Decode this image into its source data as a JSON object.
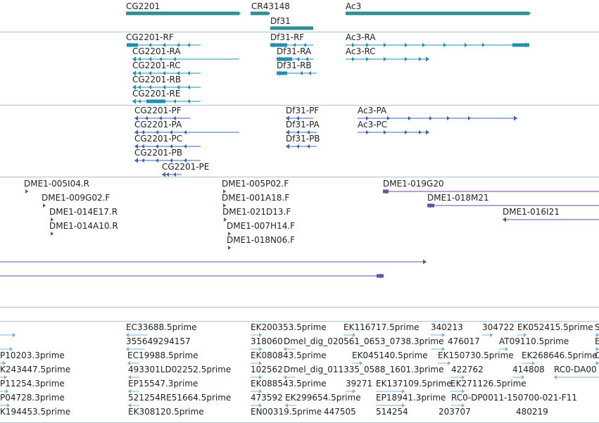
{
  "colors": {
    "gene": "#2f8f8f",
    "transcript": "#1f8fb3",
    "protein": "#3e63b5",
    "clone": "#6b4ea0",
    "est": "#7fb0da",
    "separator": "#a8c4d0"
  },
  "genes": [
    {
      "name": "CG2201"
    },
    {
      "name": "CR43148"
    },
    {
      "name": "Df31"
    },
    {
      "name": "Ac3"
    }
  ],
  "transcripts": [
    {
      "name": "CG2201-RF"
    },
    {
      "name": "CG2201-RA"
    },
    {
      "name": "CG2201-RC"
    },
    {
      "name": "CG2201-RB"
    },
    {
      "name": "CG2201-RE"
    },
    {
      "name": "Df31-RF"
    },
    {
      "name": "Df31-RA"
    },
    {
      "name": "Df31-RB"
    },
    {
      "name": "Ac3-RA"
    },
    {
      "name": "Ac3-RC"
    }
  ],
  "proteins": [
    {
      "name": "CG2201-PF"
    },
    {
      "name": "CG2201-PA"
    },
    {
      "name": "CG2201-PC"
    },
    {
      "name": "CG2201-PB"
    },
    {
      "name": "CG2201-PE"
    },
    {
      "name": "Df31-PF"
    },
    {
      "name": "Df31-PA"
    },
    {
      "name": "Df31-PB"
    },
    {
      "name": "Ac3-PA"
    },
    {
      "name": "Ac3-PC"
    }
  ],
  "clones": [
    {
      "name": "DME1-005I04.R"
    },
    {
      "name": "DME1-009G02.F"
    },
    {
      "name": "DME1-014E17.R"
    },
    {
      "name": "DME1-014A10.R"
    },
    {
      "name": "DME1-005P02.F"
    },
    {
      "name": "DME1-001A18.F"
    },
    {
      "name": "DME1-021D13.F"
    },
    {
      "name": "DME1-007H14.F"
    },
    {
      "name": "DME1-018N06.F"
    },
    {
      "name": "DME1-019G20"
    },
    {
      "name": "DME1-018M21"
    },
    {
      "name": "DME1-016I21"
    }
  ],
  "ests": [
    {
      "name": "EC33688.5prime"
    },
    {
      "name": "EK200353.5prime"
    },
    {
      "name": "EK116717.5prime"
    },
    {
      "name": "340213"
    },
    {
      "name": "304722"
    },
    {
      "name": "EK052415.5prime"
    },
    {
      "name": "S"
    },
    {
      "name": "355649294157"
    },
    {
      "name": "318060"
    },
    {
      "name": "Dmel_dig_020561_0653_0738.3prime"
    },
    {
      "name": "476017"
    },
    {
      "name": "AT09110.5prime"
    },
    {
      "name": "E"
    },
    {
      "name": "P10203.3prime"
    },
    {
      "name": "EC19988.5prime"
    },
    {
      "name": "EK080843.5prime"
    },
    {
      "name": "EK045140.5prime"
    },
    {
      "name": "EK150730.5prime"
    },
    {
      "name": "EK268646.5prime"
    },
    {
      "name": "C"
    },
    {
      "name": "K243447.5prime"
    },
    {
      "name": "493301LD02252.5prime"
    },
    {
      "name": "102562"
    },
    {
      "name": "Dmel_dig_011335_0588_1601.3prime"
    },
    {
      "name": "422762"
    },
    {
      "name": "414808"
    },
    {
      "name": "RC0-DA00"
    },
    {
      "name": "P11254.3prime"
    },
    {
      "name": "EP15547.3prime"
    },
    {
      "name": "EK088543.5prime"
    },
    {
      "name": "39271"
    },
    {
      "name": "EK137109.5prime"
    },
    {
      "name": "EK271126.5prime"
    },
    {
      "name": "P04728.3prime"
    },
    {
      "name": "521254RE51664.5prime"
    },
    {
      "name": "473592"
    },
    {
      "name": "EK299654.5prime"
    },
    {
      "name": "EP18941.3prime"
    },
    {
      "name": "RC0-DP0011-150700-021-F11"
    },
    {
      "name": "K194453.5prime"
    },
    {
      "name": "EK308120.5prime"
    },
    {
      "name": "EN00319.5prime"
    },
    {
      "name": "447505"
    },
    {
      "name": "514254"
    },
    {
      "name": "203707"
    },
    {
      "name": "480219"
    }
  ]
}
